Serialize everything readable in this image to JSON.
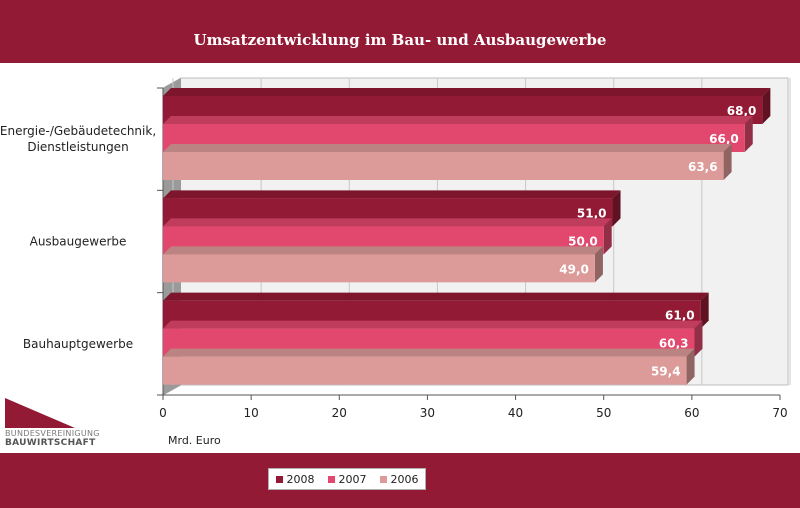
{
  "chart_data": {
    "type": "bar",
    "orientation": "horizontal",
    "title": "Umsatzentwicklung im Bau- und Ausbaugewerbe",
    "xlabel": "Mrd. Euro",
    "categories": [
      "Energie-/Gebäudetechnik, Dienstleistungen",
      "Ausbaugewerbe",
      "Bauhauptgewerbe"
    ],
    "category_lines": [
      [
        "Energie-/Gebäudetechnik,",
        "Dienstleistungen"
      ],
      [
        "Ausbaugewerbe"
      ],
      [
        "Bauhauptgewerbe"
      ]
    ],
    "series": [
      {
        "name": "2008",
        "color": "#931a35",
        "values": [
          68.0,
          51.0,
          61.0
        ],
        "labels": [
          "68,0",
          "51,0",
          "61,0"
        ]
      },
      {
        "name": "2007",
        "color": "#e2476d",
        "values": [
          66.0,
          50.0,
          60.3
        ],
        "labels": [
          "66,0",
          "50,0",
          "60,3"
        ]
      },
      {
        "name": "2006",
        "color": "#dc9a98",
        "values": [
          63.6,
          49.0,
          59.4
        ],
        "labels": [
          "63,6",
          "49,0",
          "59,4"
        ]
      }
    ],
    "xlim": [
      0,
      70
    ],
    "xticks": [
      0,
      10,
      20,
      30,
      40,
      50,
      60,
      70
    ],
    "grid": true,
    "legend_position": "bottom"
  },
  "logo": {
    "line1": "BUNDESVEREINIGUNG",
    "line2": "BAUWIRTSCHAFT"
  }
}
